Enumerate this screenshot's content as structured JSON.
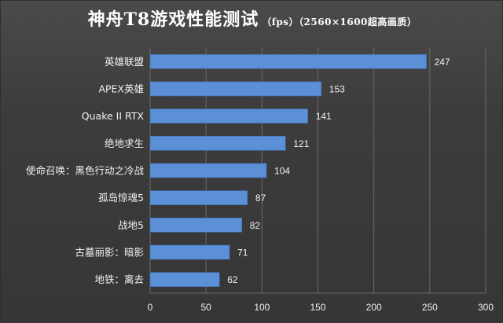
{
  "colors": {
    "bar": "#5b8fd6",
    "bar_edge": "#3f6fb3",
    "grid": "#6a6a6a",
    "text": "#f2f2f2",
    "background": "#3d3d3d"
  },
  "header": {
    "title": "神舟T8游戏性能测试",
    "subtitle": "（fps）（2560×1600超高画质）"
  },
  "chart_data": {
    "type": "bar",
    "orientation": "horizontal",
    "title": "神舟T8游戏性能测试",
    "subtitle": "（fps）（2560×1600超高画质）",
    "categories": [
      "英雄联盟",
      "APEX英雄",
      "Quake II RTX",
      "绝地求生",
      "使命召唤：黑色行动之冷战",
      "孤岛惊魂5",
      "战地5",
      "古墓丽影：暗影",
      "地铁：离去"
    ],
    "values": [
      247,
      153,
      141,
      121,
      104,
      87,
      82,
      71,
      62
    ],
    "xlim": [
      0,
      300
    ],
    "xticks": [
      0,
      50,
      100,
      150,
      200,
      250,
      300
    ],
    "xticks_labels": [
      "0",
      "50",
      "100",
      "150",
      "200",
      "250",
      "300"
    ],
    "grid": true,
    "legend": "none",
    "data_labels": true
  }
}
